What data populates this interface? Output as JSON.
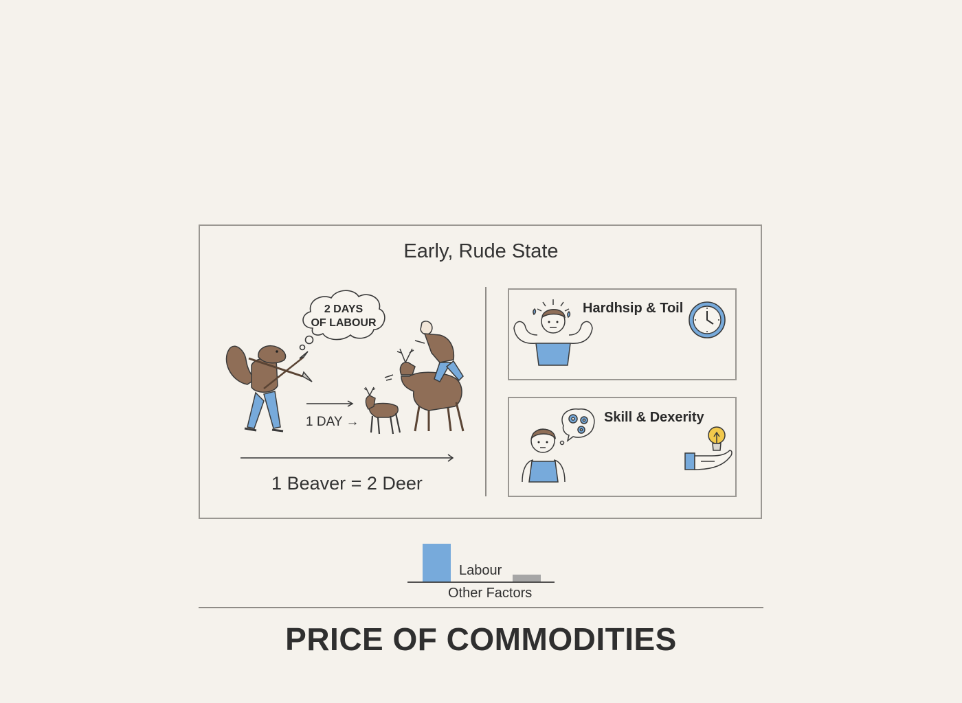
{
  "title": "Early, Rude State",
  "cloud": {
    "line1": "2 DAYS",
    "line2": "OF LABOUR"
  },
  "one_day_label": "1 DAY →",
  "equation": "1 Beaver = 2 Deer",
  "panels": [
    {
      "label": "Hardhsip & Toil",
      "icon": "clock-icon"
    },
    {
      "label": "Skill & Dexerity",
      "icon": "lightbulb-icon"
    }
  ],
  "bar_chart": {
    "labels": [
      "Labour",
      "Other Factors"
    ],
    "colors": {
      "labour": "#77aadb",
      "other": "#a6a6a6"
    }
  },
  "footer": "PRICE OF COMMODITIES",
  "colors": {
    "brown": "#8f6e57",
    "blue": "#77aadb",
    "border": "#9a9792",
    "background": "#f5f2ec"
  }
}
